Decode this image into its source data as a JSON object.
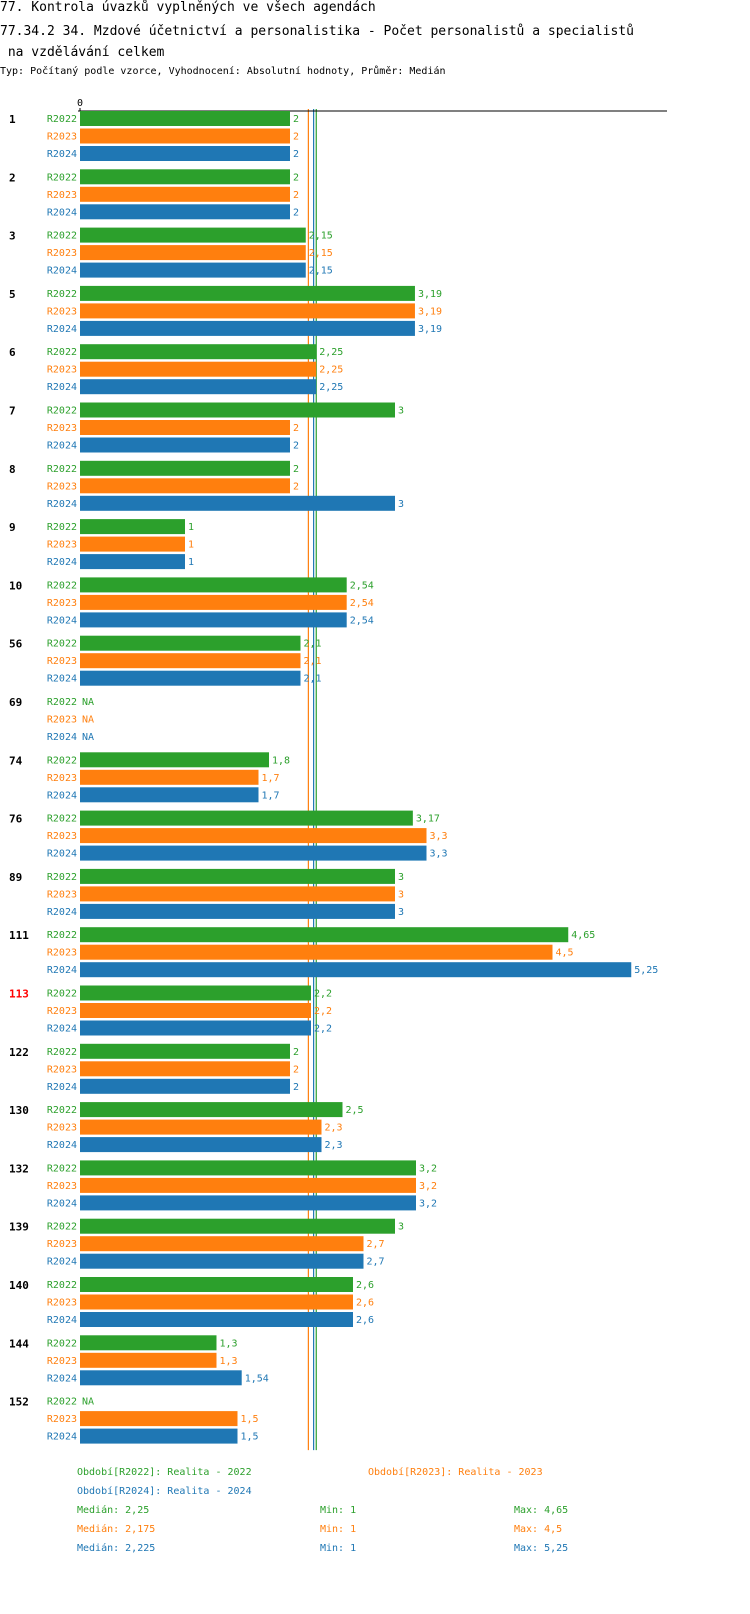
{
  "header": {
    "title_line1": "77. Kontrola úvazků vyplněných ve všech agendách",
    "title_line2": "77.34.2 34. Mzdové účetnictví a personalistika - Počet personalistů a specialistů\n na vzdělávání celkem",
    "subtitle": "Typ: Počítaný podle vzorce, Vyhodnocení: Absolutní hodnoty, Průměr: Medián"
  },
  "colors": {
    "R2022": "#2ca02c",
    "R2023": "#ff7f0e",
    "R2024": "#1f77b4",
    "highlight": "#ff0000",
    "axis": "#000000"
  },
  "chart_data": {
    "type": "bar",
    "orientation": "horizontal",
    "axis_zero_label": "0",
    "series_names": [
      "R2022",
      "R2023",
      "R2024"
    ],
    "highlight_category": "113",
    "categories": [
      "1",
      "2",
      "3",
      "5",
      "6",
      "7",
      "8",
      "9",
      "10",
      "56",
      "69",
      "74",
      "76",
      "89",
      "111",
      "113",
      "122",
      "130",
      "132",
      "139",
      "140",
      "144",
      "152"
    ],
    "values": {
      "R2022": [
        2,
        2,
        2.15,
        3.19,
        2.25,
        3,
        2,
        1,
        2.54,
        2.1,
        null,
        1.8,
        3.17,
        3,
        4.65,
        2.2,
        2,
        2.5,
        3.2,
        3,
        2.6,
        1.3,
        null
      ],
      "R2023": [
        2,
        2,
        2.15,
        3.19,
        2.25,
        2,
        2,
        1,
        2.54,
        2.1,
        null,
        1.7,
        3.3,
        3,
        4.5,
        2.2,
        2,
        2.3,
        3.2,
        2.7,
        2.6,
        1.3,
        1.5
      ],
      "R2024": [
        2,
        2,
        2.15,
        3.19,
        2.25,
        2,
        3,
        1,
        2.54,
        2.1,
        null,
        1.7,
        3.3,
        3,
        5.25,
        2.2,
        2,
        2.3,
        3.2,
        2.7,
        2.6,
        1.54,
        1.5
      ]
    },
    "value_labels": {
      "R2022": [
        "2",
        "2",
        "2,15",
        "3,19",
        "2,25",
        "3",
        "2",
        "1",
        "2,54",
        "2,1",
        "NA",
        "1,8",
        "3,17",
        "3",
        "4,65",
        "2,2",
        "2",
        "2,5",
        "3,2",
        "3",
        "2,6",
        "1,3",
        "NA"
      ],
      "R2023": [
        "2",
        "2",
        "2,15",
        "3,19",
        "2,25",
        "2",
        "2",
        "1",
        "2,54",
        "2,1",
        "NA",
        "1,7",
        "3,3",
        "3",
        "4,5",
        "2,2",
        "2",
        "2,3",
        "3,2",
        "2,7",
        "2,6",
        "1,3",
        "1,5"
      ],
      "R2024": [
        "2",
        "2",
        "2,15",
        "3,19",
        "2,25",
        "2",
        "3",
        "1",
        "2,54",
        "2,1",
        "NA",
        "1,7",
        "3,3",
        "3",
        "5,25",
        "2,2",
        "2",
        "2,3",
        "3,2",
        "2,7",
        "2,6",
        "1,54",
        "1,5"
      ]
    },
    "median_lines": {
      "R2022": 2.25,
      "R2023": 2.175,
      "R2024": 2.225
    }
  },
  "legend": {
    "periods": {
      "R2022": "Období[R2022]: Realita - 2022",
      "R2023": "Období[R2023]: Realita - 2023",
      "R2024": "Období[R2024]: Realita - 2024"
    },
    "stats": {
      "R2022": {
        "median": "Medián: 2,25",
        "min": "Min: 1",
        "max": "Max: 4,65"
      },
      "R2023": {
        "median": "Medián: 2,175",
        "min": "Min: 1",
        "max": "Max: 4,5"
      },
      "R2024": {
        "median": "Medián: 2,225",
        "min": "Min: 1",
        "max": "Max: 5,25"
      }
    }
  }
}
